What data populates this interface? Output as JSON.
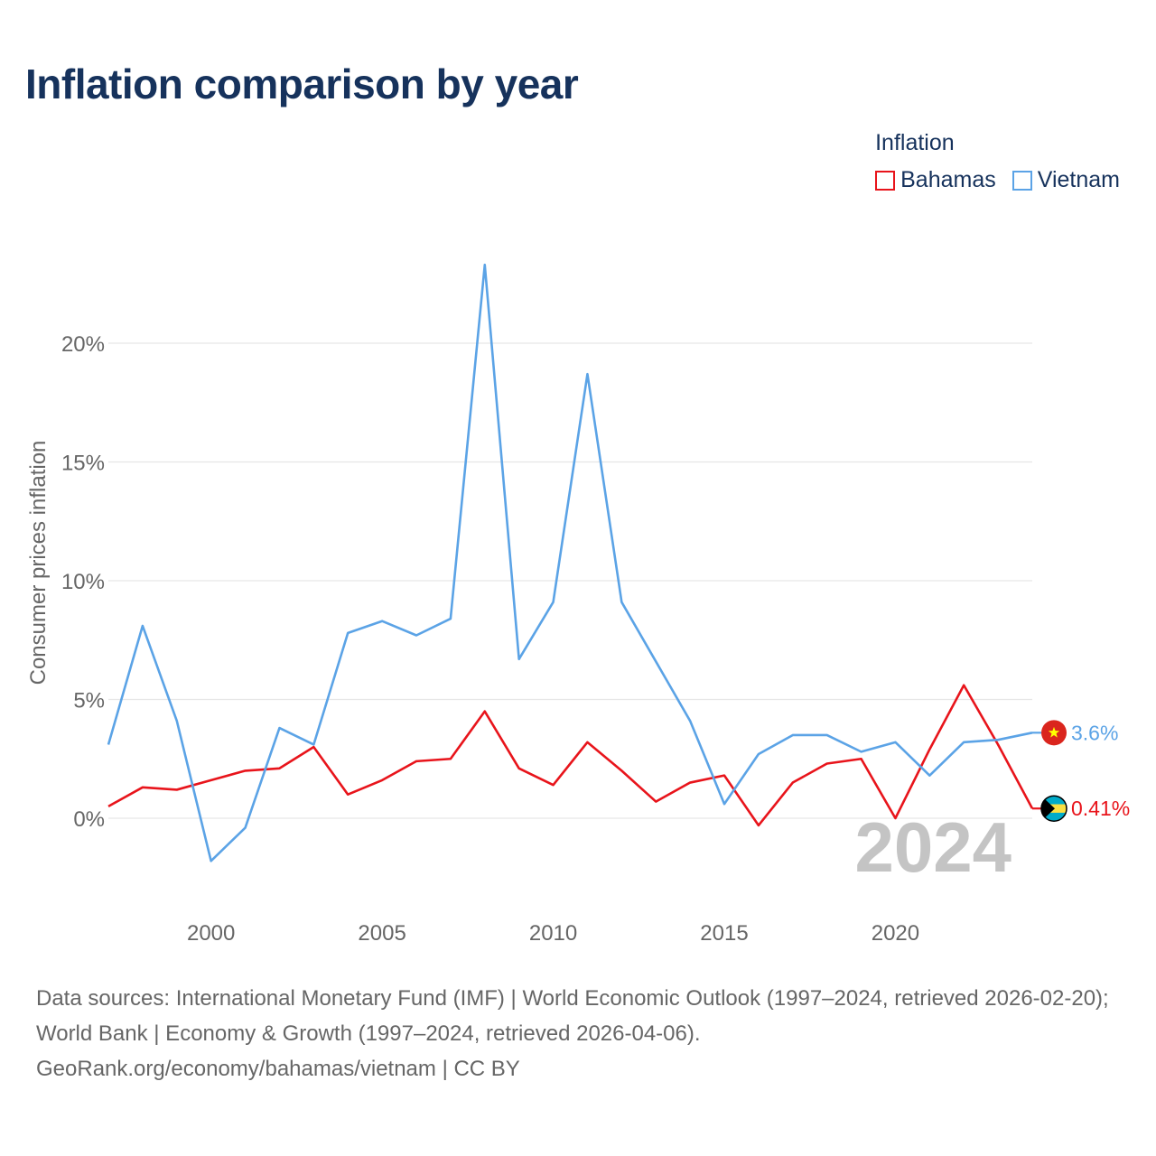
{
  "chart_data": {
    "type": "line",
    "title": "Inflation comparison by year",
    "legend_title": "Inflation",
    "ylabel": "Consumer prices inflation",
    "xlabel": "",
    "x": [
      1997,
      1998,
      1999,
      2000,
      2001,
      2002,
      2003,
      2004,
      2005,
      2006,
      2007,
      2008,
      2009,
      2010,
      2011,
      2012,
      2013,
      2014,
      2015,
      2016,
      2017,
      2018,
      2019,
      2020,
      2021,
      2022,
      2023,
      2024
    ],
    "xlim": [
      1997,
      2024
    ],
    "xticks": [
      2000,
      2005,
      2010,
      2015,
      2020
    ],
    "ylim": [
      -4,
      25
    ],
    "yticks": [
      0,
      5,
      10,
      15,
      20
    ],
    "ytick_labels": [
      "0%",
      "5%",
      "10%",
      "15%",
      "20%"
    ],
    "series": [
      {
        "name": "Bahamas",
        "color": "#e8141b",
        "flag": "bahamas-flag",
        "end_label": "0.41%",
        "values": [
          0.5,
          1.3,
          1.2,
          1.6,
          2.0,
          2.1,
          3.0,
          1.0,
          1.6,
          2.4,
          2.5,
          4.5,
          2.1,
          1.4,
          3.2,
          2.0,
          0.7,
          1.5,
          1.8,
          -0.3,
          1.5,
          2.3,
          2.5,
          0.0,
          2.9,
          5.6,
          3.1,
          0.41
        ]
      },
      {
        "name": "Vietnam",
        "color": "#5ba3e6",
        "flag": "vietnam-flag",
        "end_label": "3.6%",
        "values": [
          3.1,
          8.1,
          4.1,
          -1.8,
          -0.4,
          3.8,
          3.1,
          7.8,
          8.3,
          7.7,
          8.4,
          23.3,
          6.7,
          9.1,
          18.7,
          9.1,
          6.6,
          4.1,
          0.6,
          2.7,
          3.5,
          3.5,
          2.8,
          3.2,
          1.8,
          3.2,
          3.3,
          3.6
        ]
      }
    ],
    "year_watermark": "2024",
    "grid": true
  },
  "footer": {
    "source_text": "Data sources: International Monetary Fund (IMF) | World Economic Outlook (1997–2024, retrieved 2026-02-20); World Bank | Economy & Growth (1997–2024, retrieved 2026-04-06).",
    "attribution": "GeoRank.org/economy/bahamas/vietnam | CC BY"
  }
}
